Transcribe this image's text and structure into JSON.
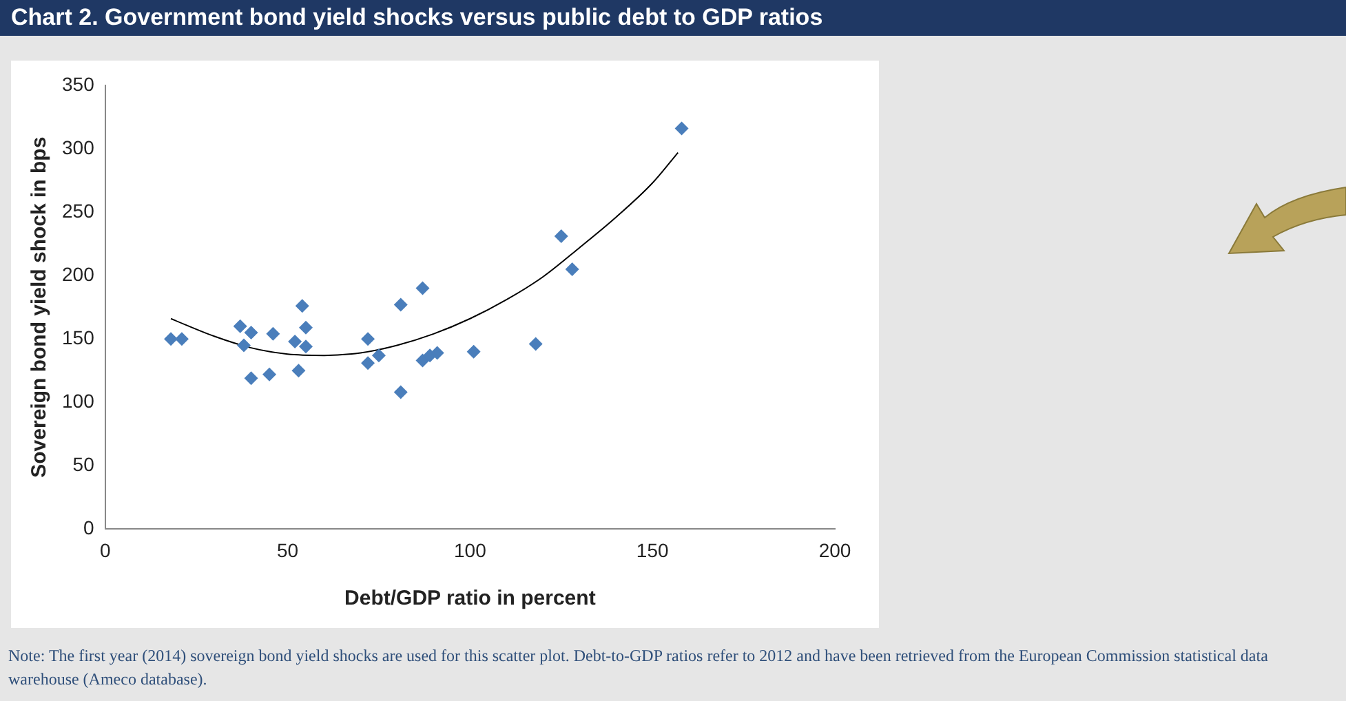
{
  "chart_data": {
    "type": "scatter",
    "title": "Chart 2. Government bond yield shocks versus public debt to GDP ratios",
    "xlabel": "Debt/GDP ratio in percent",
    "ylabel": "Sovereign bond yield shock in bps",
    "annotations": [
      "Note: The first year (2014) sovereign bond yield shocks are used for this scatter plot. Debt-to-GDP ratios refer to 2012 and have been retrieved from the European Commission statistical data warehouse (Ameco database)."
    ],
    "xlim": [
      0,
      200
    ],
    "xticks": [
      0,
      50,
      100,
      150,
      200
    ],
    "ylim": [
      0,
      350
    ],
    "yticks": [
      0,
      50,
      100,
      150,
      200,
      250,
      300,
      350
    ],
    "grid": false,
    "legend": false,
    "marker": "diamond",
    "series": [
      {
        "color": "#4a7ebb",
        "x": [
          18,
          21,
          37,
          38,
          40,
          40,
          45,
          46,
          52,
          54,
          55,
          55,
          53,
          72,
          72,
          75,
          81,
          81,
          87,
          87,
          89,
          91,
          101,
          118,
          125,
          128,
          158
        ],
        "values": [
          150,
          150,
          160,
          145,
          155,
          119,
          122,
          154,
          148,
          176,
          159,
          144,
          125,
          150,
          131,
          137,
          108,
          177,
          190,
          133,
          137,
          139,
          140,
          146,
          231,
          205,
          316
        ]
      },
      {
        "type": "line",
        "color": "#000000",
        "marker": "none",
        "x": [
          18,
          30,
          40,
          50,
          60,
          70,
          80,
          90,
          100,
          110,
          120,
          130,
          140,
          150,
          157
        ],
        "values": [
          166,
          152,
          143,
          138,
          137,
          139,
          145,
          154,
          166,
          181,
          199,
          222,
          246,
          273,
          297
        ]
      }
    ]
  }
}
